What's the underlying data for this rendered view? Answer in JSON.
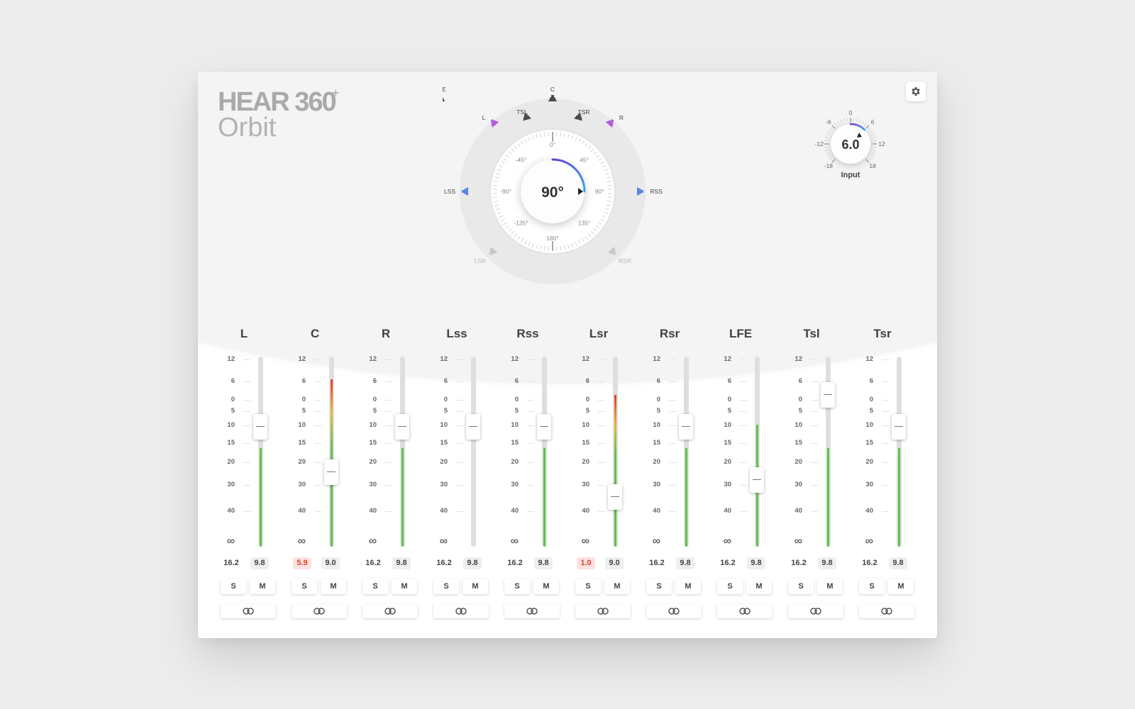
{
  "brand": {
    "name": "HEAR 360",
    "plus": "+",
    "product": "Orbit"
  },
  "icons": {
    "settings": "gear-icon",
    "link": "link-icon",
    "speaker": "speaker-icon"
  },
  "orbit": {
    "angle_display": "90°",
    "angle_value": 90,
    "ring_labels": [
      "0°",
      "45°",
      "90°",
      "135°",
      "180°",
      "-135°",
      "-90°",
      "-45°"
    ],
    "speakers": [
      {
        "id": "LFE",
        "label": "LFE",
        "state": "neutral"
      },
      {
        "id": "C",
        "label": "C",
        "state": "neutral"
      },
      {
        "id": "L",
        "label": "L",
        "state": "active-purple"
      },
      {
        "id": "R",
        "label": "R",
        "state": "active-purple"
      },
      {
        "id": "TSL",
        "label": "TSL",
        "state": "neutral"
      },
      {
        "id": "TSR",
        "label": "TSR",
        "state": "neutral"
      },
      {
        "id": "LSS",
        "label": "LSS",
        "state": "active-blue"
      },
      {
        "id": "RSS",
        "label": "RSS",
        "state": "active-blue"
      },
      {
        "id": "LSR",
        "label": "LSR",
        "state": "dim"
      },
      {
        "id": "RSR",
        "label": "RSR",
        "state": "dim"
      }
    ],
    "colors": {
      "purple": "#b05be0",
      "blue": "#5b86e8",
      "neutral": "#4a4a4a",
      "dim": "#c8c8c8",
      "arc_start": "#6a3fd0",
      "arc_end": "#34a6f0"
    }
  },
  "input": {
    "label": "Input",
    "value": "6.0",
    "scale": [
      "0",
      "6",
      "12",
      "18",
      "-18",
      "-12",
      "-6"
    ]
  },
  "scale_labels": [
    "12",
    "6",
    "0",
    "5",
    "10",
    "15",
    "20",
    "30",
    "40",
    "∞"
  ],
  "channels": [
    {
      "name": "L",
      "peak": "16.2",
      "rms": "9.8",
      "clip": false,
      "fader_pos": 0.37,
      "meter_level": 0.52,
      "meter_color": "green",
      "solo": "S",
      "mute": "M"
    },
    {
      "name": "C",
      "peak": "5.9",
      "rms": "9.0",
      "clip": true,
      "fader_pos": 0.61,
      "meter_level": 0.88,
      "meter_color": "hot",
      "solo": "S",
      "mute": "M"
    },
    {
      "name": "R",
      "peak": "16.2",
      "rms": "9.8",
      "clip": false,
      "fader_pos": 0.37,
      "meter_level": 0.52,
      "meter_color": "green",
      "solo": "S",
      "mute": "M"
    },
    {
      "name": "Lss",
      "peak": "16.2",
      "rms": "9.8",
      "clip": false,
      "fader_pos": 0.37,
      "meter_level": 0.0,
      "meter_color": "green",
      "solo": "S",
      "mute": "M"
    },
    {
      "name": "Rss",
      "peak": "16.2",
      "rms": "9.8",
      "clip": false,
      "fader_pos": 0.37,
      "meter_level": 0.52,
      "meter_color": "green",
      "solo": "S",
      "mute": "M"
    },
    {
      "name": "Lsr",
      "peak": "1.0",
      "rms": "9.0",
      "clip": true,
      "fader_pos": 0.74,
      "meter_level": 0.8,
      "meter_color": "hot",
      "solo": "S",
      "mute": "M"
    },
    {
      "name": "Rsr",
      "peak": "16.2",
      "rms": "9.8",
      "clip": false,
      "fader_pos": 0.37,
      "meter_level": 0.52,
      "meter_color": "green",
      "solo": "S",
      "mute": "M"
    },
    {
      "name": "LFE",
      "peak": "16.2",
      "rms": "9.8",
      "clip": false,
      "fader_pos": 0.65,
      "meter_level": 0.64,
      "meter_color": "green",
      "solo": "S",
      "mute": "M"
    },
    {
      "name": "Tsl",
      "peak": "16.2",
      "rms": "9.8",
      "clip": false,
      "fader_pos": 0.2,
      "meter_level": 0.52,
      "meter_color": "green",
      "solo": "S",
      "mute": "M"
    },
    {
      "name": "Tsr",
      "peak": "16.2",
      "rms": "9.8",
      "clip": false,
      "fader_pos": 0.37,
      "meter_level": 0.52,
      "meter_color": "green",
      "solo": "S",
      "mute": "M"
    }
  ],
  "meter_colors": {
    "green": "#5cc24a",
    "yellow": "#e7b83a",
    "red": "#e53a2a"
  }
}
